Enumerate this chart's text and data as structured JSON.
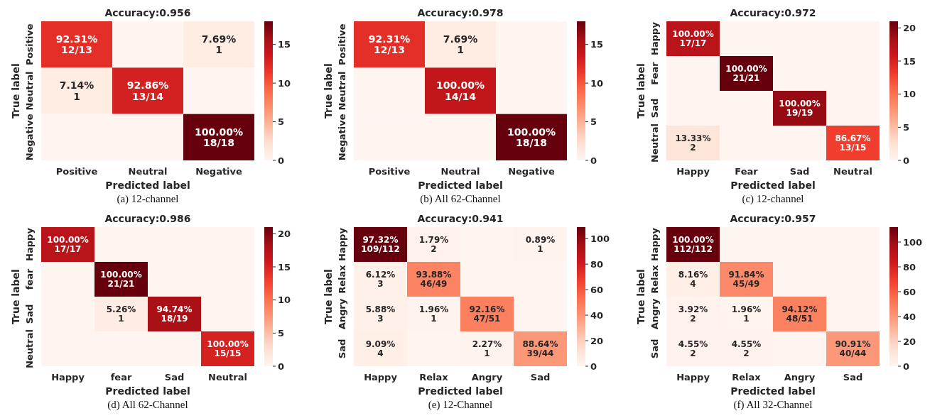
{
  "chart_data": [
    {
      "type": "heatmap",
      "title": "Accuracy:0.956",
      "xlabel": "Predicted label",
      "ylabel": "True label",
      "annotations": [
        "(a) 12-channel"
      ],
      "categories": [
        "Positive",
        "Neutral",
        "Negative"
      ],
      "y_categories": [
        "Positive",
        "Neutral",
        "Negative"
      ],
      "cells": [
        [
          12,
          0,
          1
        ],
        [
          1,
          13,
          0
        ],
        [
          0,
          0,
          18
        ]
      ],
      "cell_labels": [
        [
          "92.31%\n12/13",
          null,
          "7.69%\n1"
        ],
        [
          "7.14%\n1",
          "92.86%\n13/14",
          null
        ],
        [
          null,
          null,
          "100.00%\n18/18"
        ]
      ],
      "clim": [
        0,
        18
      ],
      "cticks": [
        0,
        5,
        10,
        15
      ]
    },
    {
      "type": "heatmap",
      "title": "Accuracy:0.978",
      "xlabel": "Predicted label",
      "ylabel": "True label",
      "annotations": [
        "(b) All 62-Channel"
      ],
      "categories": [
        "Positive",
        "Neutral",
        "Negative"
      ],
      "y_categories": [
        "Positive",
        "Neutral",
        "Negative"
      ],
      "cells": [
        [
          12,
          1,
          0
        ],
        [
          0,
          14,
          0
        ],
        [
          0,
          0,
          18
        ]
      ],
      "cell_labels": [
        [
          "92.31%\n12/13",
          "7.69%\n1",
          null
        ],
        [
          null,
          "100.00%\n14/14",
          null
        ],
        [
          null,
          null,
          "100.00%\n18/18"
        ]
      ],
      "clim": [
        0,
        18
      ],
      "cticks": [
        0,
        5,
        10,
        15
      ]
    },
    {
      "type": "heatmap",
      "title": "Accuracy:0.972",
      "xlabel": "Predicted label",
      "ylabel": "True label",
      "annotations": [
        "(c) 12-channel"
      ],
      "categories": [
        "Happy",
        "Fear",
        "Sad",
        "Neutral"
      ],
      "y_categories": [
        "Happy",
        "Fear",
        "Sad",
        "Neutral"
      ],
      "cells": [
        [
          17,
          0,
          0,
          0
        ],
        [
          0,
          21,
          0,
          0
        ],
        [
          0,
          0,
          19,
          0
        ],
        [
          2,
          0,
          0,
          13
        ]
      ],
      "cell_labels": [
        [
          "100.00%\n17/17",
          null,
          null,
          null
        ],
        [
          null,
          "100.00%\n21/21",
          null,
          null
        ],
        [
          null,
          null,
          "100.00%\n19/19",
          null
        ],
        [
          "13.33%\n2",
          null,
          null,
          "86.67%\n13/15"
        ]
      ],
      "clim": [
        0,
        21
      ],
      "cticks": [
        0,
        5,
        10,
        15,
        20
      ]
    },
    {
      "type": "heatmap",
      "title": "Accuracy:0.986",
      "xlabel": "Predicted label",
      "ylabel": "True label",
      "annotations": [
        "(d) All 62-Channel"
      ],
      "categories": [
        "Happy",
        "fear",
        "Sad",
        "Neutral"
      ],
      "y_categories": [
        "Happy",
        "fear",
        "Sad",
        "Neutral"
      ],
      "cells": [
        [
          17,
          0,
          0,
          0
        ],
        [
          0,
          21,
          0,
          0
        ],
        [
          0,
          1,
          18,
          0
        ],
        [
          0,
          0,
          0,
          15
        ]
      ],
      "cell_labels": [
        [
          "100.00%\n17/17",
          null,
          null,
          null
        ],
        [
          null,
          "100.00%\n21/21",
          null,
          null
        ],
        [
          null,
          "5.26%\n1",
          "94.74%\n18/19",
          null
        ],
        [
          null,
          null,
          null,
          "100.00%\n15/15"
        ]
      ],
      "clim": [
        0,
        21
      ],
      "cticks": [
        0,
        5,
        10,
        15,
        20
      ]
    },
    {
      "type": "heatmap",
      "title": "Accuracy:0.941",
      "xlabel": "Predicted label",
      "ylabel": "True label",
      "annotations": [
        "(e) 12-Channel"
      ],
      "categories": [
        "Happy",
        "Relax",
        "Angry",
        "Sad"
      ],
      "y_categories": [
        "Happy",
        "Relax",
        "Angry",
        "Sad"
      ],
      "cells": [
        [
          109,
          2,
          0,
          1
        ],
        [
          3,
          46,
          0,
          0
        ],
        [
          3,
          1,
          47,
          0
        ],
        [
          4,
          0,
          1,
          39
        ]
      ],
      "cell_labels": [
        [
          "97.32%\n109/112",
          "1.79%\n2",
          null,
          "0.89%\n1"
        ],
        [
          "6.12%\n3",
          "93.88%\n46/49",
          null,
          null
        ],
        [
          "5.88%\n3",
          "1.96%\n1",
          "92.16%\n47/51",
          null
        ],
        [
          "9.09%\n4",
          null,
          "2.27%\n1",
          "88.64%\n39/44"
        ]
      ],
      "clim": [
        0,
        109
      ],
      "cticks": [
        0,
        20,
        40,
        60,
        80,
        100
      ]
    },
    {
      "type": "heatmap",
      "title": "Accuracy:0.957",
      "xlabel": "Predicted label",
      "ylabel": "True label",
      "annotations": [
        "(f) All 32-Channel"
      ],
      "categories": [
        "Happy",
        "Relax",
        "Angry",
        "Sad"
      ],
      "y_categories": [
        "Happy",
        "Relax",
        "Angry",
        "Sad"
      ],
      "cells": [
        [
          112,
          0,
          0,
          0
        ],
        [
          4,
          45,
          0,
          0
        ],
        [
          2,
          1,
          48,
          0
        ],
        [
          2,
          2,
          0,
          40
        ]
      ],
      "cell_labels": [
        [
          "100.00%\n112/112",
          null,
          null,
          null
        ],
        [
          "8.16%\n4",
          "91.84%\n45/49",
          null,
          null
        ],
        [
          "3.92%\n2",
          "1.96%\n1",
          "94.12%\n48/51",
          null
        ],
        [
          "4.55%\n2",
          "4.55%\n2",
          null,
          "90.91%\n40/44"
        ]
      ],
      "clim": [
        0,
        112
      ],
      "cticks": [
        0,
        20,
        40,
        60,
        80,
        100
      ]
    }
  ]
}
